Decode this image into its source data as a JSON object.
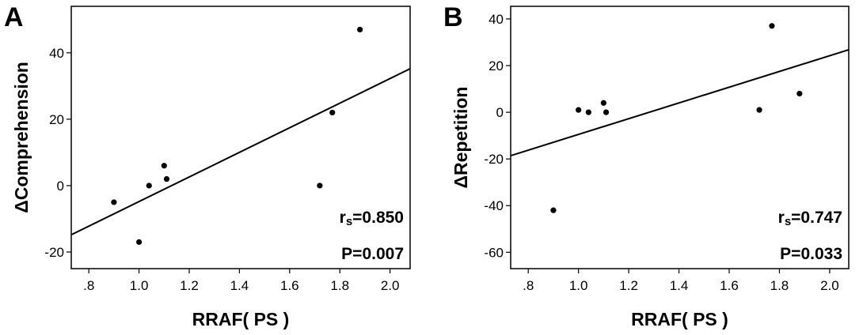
{
  "chart_data": [
    {
      "type": "scatter",
      "panel": "A",
      "xlabel": "RRAF( PS )",
      "ylabel": "ΔComprehension",
      "x": [
        0.9,
        1.0,
        1.04,
        1.1,
        1.11,
        1.72,
        1.77,
        1.88
      ],
      "values": [
        -5,
        -17,
        0,
        6,
        2,
        0,
        22,
        47
      ],
      "color": "#000000",
      "fit": {
        "x": [
          0.73,
          2.08
        ],
        "y": [
          -14.8,
          35.2
        ]
      },
      "xlim": [
        0.73,
        2.08
      ],
      "ylim": [
        -25,
        54
      ],
      "xticks": [
        {
          "value": 0.8,
          "label": ".8"
        },
        {
          "value": 1.0,
          "label": "1.0"
        },
        1.2,
        1.4,
        1.6,
        1.8,
        {
          "value": 2.0,
          "label": "2.0"
        }
      ],
      "yticks": [
        -20,
        0,
        20,
        40
      ],
      "annotations": [
        {
          "main": "r",
          "sub": "s",
          "rest": "=0.850"
        },
        "P=0.007"
      ]
    },
    {
      "type": "scatter",
      "panel": "B",
      "xlabel": "RRAF( PS )",
      "ylabel": "ΔRepetition",
      "x": [
        0.9,
        1.0,
        1.04,
        1.1,
        1.11,
        1.72,
        1.77,
        1.88
      ],
      "values": [
        -42,
        1,
        0,
        4,
        0,
        1,
        37,
        8
      ],
      "color": "#000000",
      "fit": {
        "x": [
          0.73,
          2.076
        ],
        "y": [
          -18.6,
          26.8
        ]
      },
      "xlim": [
        0.73,
        2.076
      ],
      "ylim": [
        -67,
        45.4
      ],
      "xticks": [
        {
          "value": 0.8,
          "label": ".8"
        },
        {
          "value": 1.0,
          "label": "1.0"
        },
        1.2,
        1.4,
        1.6,
        1.8,
        {
          "value": 2.0,
          "label": "2.0"
        }
      ],
      "yticks": [
        -60,
        -40,
        -20,
        0,
        20,
        40
      ],
      "annotations": [
        {
          "main": "r",
          "sub": "s",
          "rest": "=0.747"
        },
        "P=0.033"
      ]
    }
  ]
}
